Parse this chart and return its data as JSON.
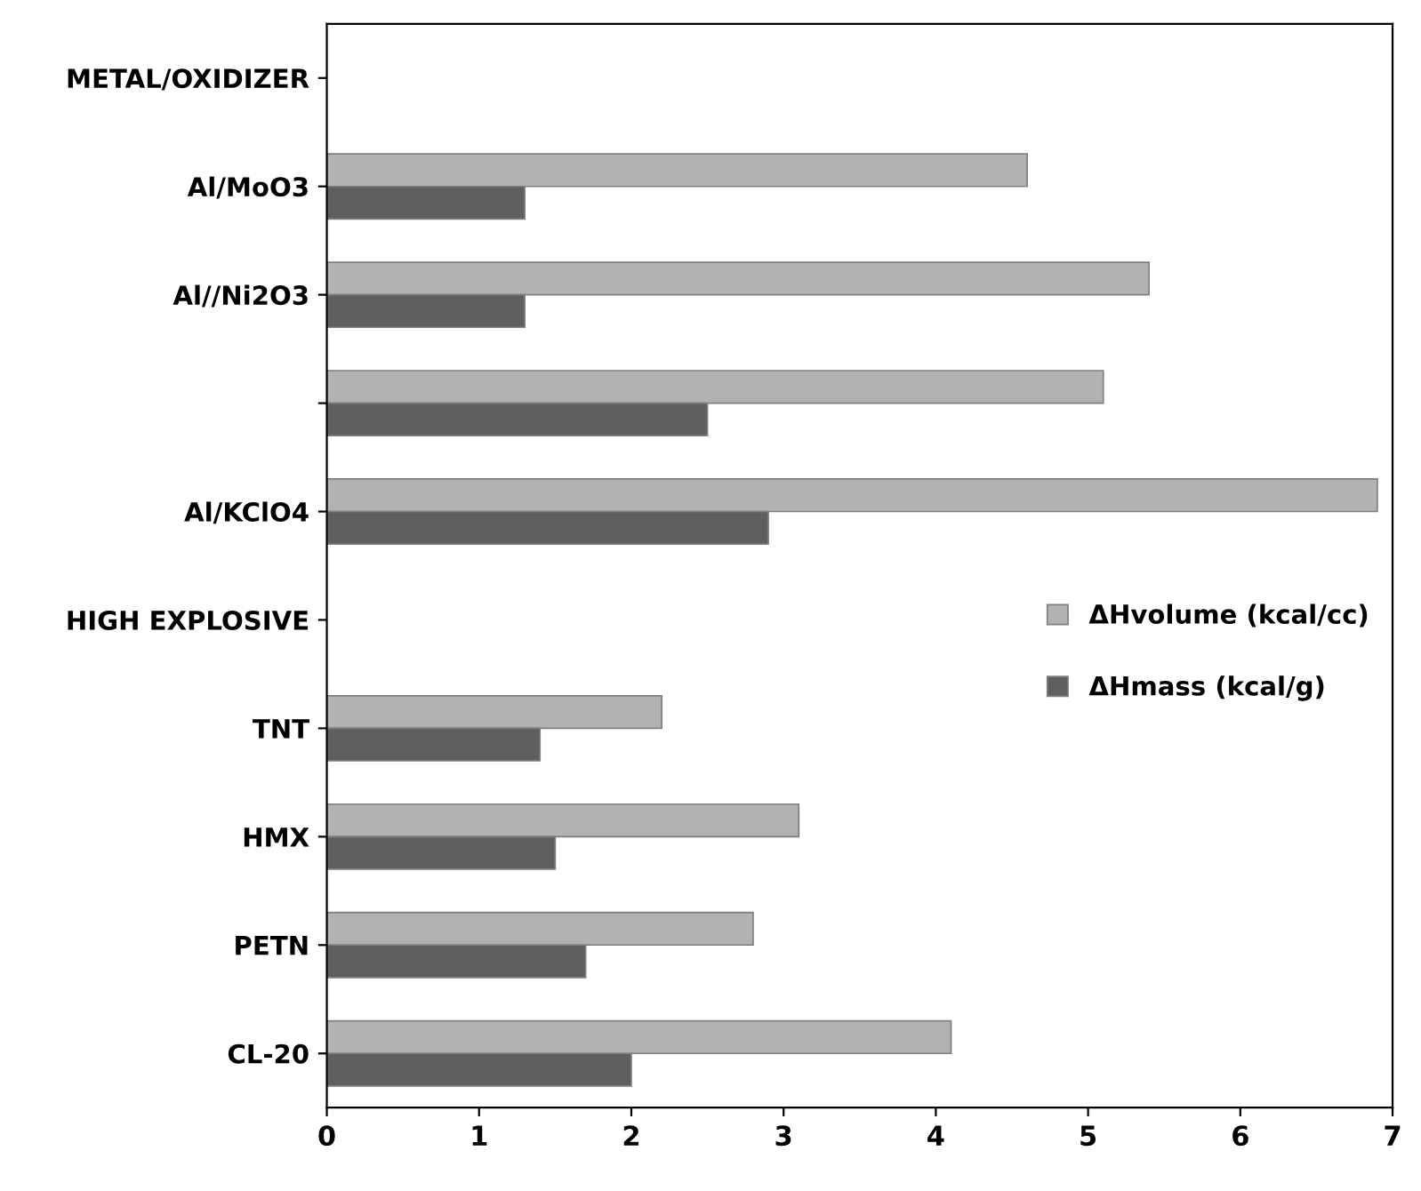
{
  "chart_data": {
    "type": "bar",
    "orientation": "horizontal",
    "categories": [
      "METAL/OXIDIZER",
      "Al/MoO3",
      "Al//Ni2O3",
      null,
      "Al/KClO4",
      "HIGH EXPLOSIVE",
      "TNT",
      "HMX",
      "PETN",
      "CL-20"
    ],
    "series": [
      {
        "name": "ΔHvolume (kcal/cc)",
        "color": "#b2b2b2",
        "values": [
          null,
          4.6,
          5.4,
          5.1,
          6.9,
          null,
          2.2,
          3.1,
          2.8,
          4.1
        ]
      },
      {
        "name": "ΔHmass (kcal/g)",
        "color": "#5f5f5f",
        "values": [
          null,
          1.3,
          1.3,
          2.5,
          2.9,
          null,
          1.4,
          1.5,
          1.7,
          2.0
        ]
      }
    ],
    "xlim": [
      0,
      7
    ],
    "xticks": [
      0,
      1,
      2,
      3,
      4,
      5,
      6,
      7
    ],
    "grid": false,
    "legend": "right"
  }
}
